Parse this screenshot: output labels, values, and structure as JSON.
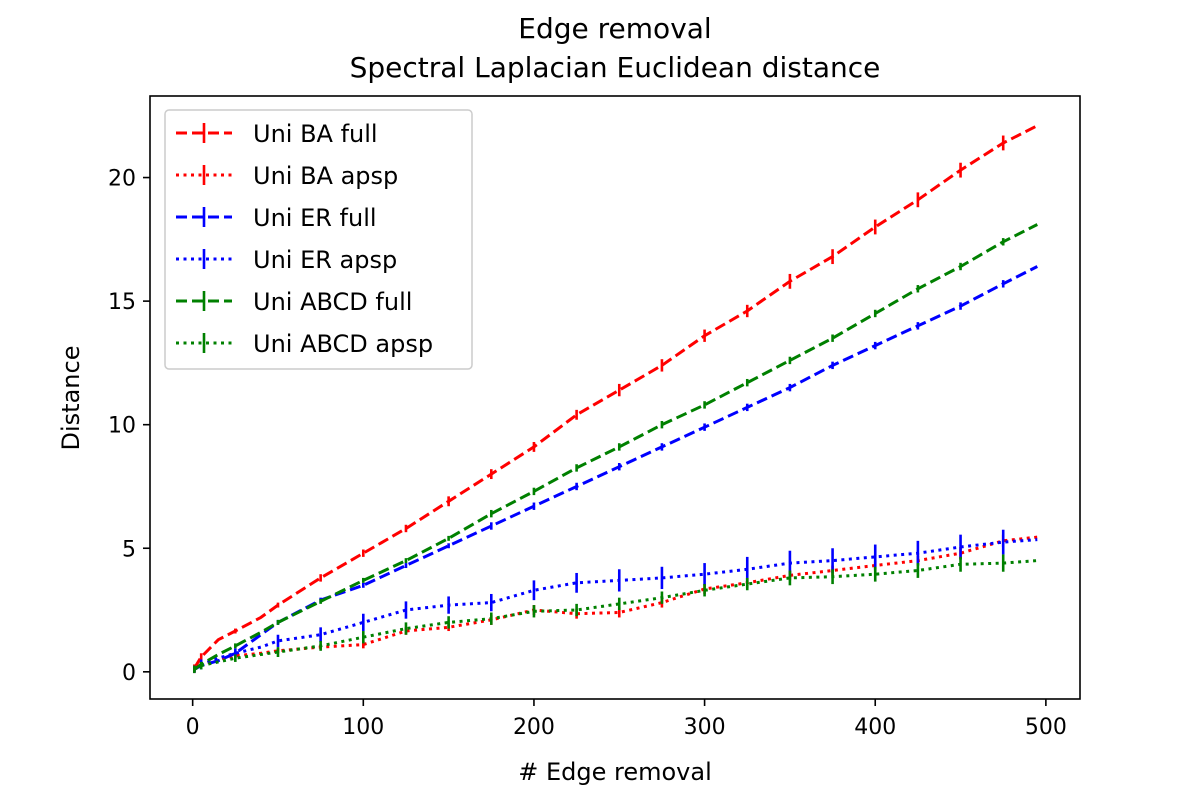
{
  "chart_data": {
    "type": "line",
    "title": "Edge removal",
    "subtitle": "Spectral Laplacian Euclidean distance",
    "xlabel": "#  Edge removal",
    "ylabel": "Distance",
    "xlim": [
      -25,
      520
    ],
    "ylim": [
      -1.1,
      23.3
    ],
    "xticks": [
      0,
      100,
      200,
      300,
      400,
      500
    ],
    "yticks": [
      0,
      5,
      10,
      15,
      20
    ],
    "xtick_labels": [
      "0",
      "100",
      "200",
      "300",
      "400",
      "500"
    ],
    "ytick_labels": [
      "0",
      "5",
      "10",
      "15",
      "20"
    ],
    "legend_position": "top-left",
    "grid": false,
    "x": [
      1,
      5,
      15,
      25,
      40,
      50,
      75,
      100,
      125,
      150,
      175,
      200,
      225,
      250,
      275,
      300,
      325,
      350,
      375,
      400,
      425,
      450,
      475,
      495
    ],
    "errorbar_x": [
      1,
      5,
      25,
      50,
      75,
      100,
      125,
      150,
      175,
      200,
      225,
      250,
      275,
      300,
      325,
      350,
      375,
      400,
      425,
      450,
      475
    ],
    "series": [
      {
        "name": "Uni BA full",
        "color": "#ff0000",
        "style": "dashed",
        "values": [
          0.15,
          0.6,
          1.3,
          1.65,
          2.2,
          2.7,
          3.8,
          4.8,
          5.8,
          6.9,
          8.0,
          9.1,
          10.4,
          11.4,
          12.4,
          13.6,
          14.6,
          15.8,
          16.8,
          18.0,
          19.1,
          20.3,
          21.4,
          22.1
        ],
        "errors": [
          0.15,
          0.15,
          0.1,
          0.1,
          0.15,
          0.15,
          0.15,
          0.2,
          0.2,
          0.2,
          0.2,
          0.25,
          0.25,
          0.25,
          0.25,
          0.3,
          0.3,
          0.3,
          0.3,
          0.3,
          0.3
        ]
      },
      {
        "name": "Uni BA apsp",
        "color": "#ff0000",
        "style": "dotted",
        "values": [
          0.1,
          0.3,
          0.5,
          0.65,
          0.75,
          0.85,
          1.0,
          1.1,
          1.65,
          1.8,
          2.1,
          2.5,
          2.35,
          2.4,
          2.8,
          3.35,
          3.6,
          3.9,
          4.1,
          4.3,
          4.5,
          4.8,
          5.3,
          5.45
        ],
        "errors": [
          0.15,
          0.15,
          0.1,
          0.1,
          0.1,
          0.15,
          0.15,
          0.15,
          0.2,
          0.2,
          0.2,
          0.2,
          0.2,
          0.2,
          0.2,
          0.2,
          0.2,
          0.2,
          0.2,
          0.25,
          0.25
        ]
      },
      {
        "name": "Uni ER full",
        "color": "#0000ff",
        "style": "dashed",
        "values": [
          0.1,
          0.25,
          0.45,
          0.75,
          1.5,
          2.0,
          2.9,
          3.5,
          4.3,
          5.1,
          5.9,
          6.7,
          7.5,
          8.3,
          9.1,
          9.9,
          10.7,
          11.5,
          12.4,
          13.2,
          14.0,
          14.8,
          15.7,
          16.4
        ],
        "errors": [
          0.1,
          0.1,
          0.1,
          0.1,
          0.1,
          0.1,
          0.1,
          0.1,
          0.15,
          0.15,
          0.15,
          0.15,
          0.15,
          0.15,
          0.15,
          0.15,
          0.15,
          0.15,
          0.15,
          0.15,
          0.15
        ]
      },
      {
        "name": "Uni ER apsp",
        "color": "#0000ff",
        "style": "dotted",
        "values": [
          0.1,
          0.3,
          0.55,
          0.75,
          1.0,
          1.25,
          1.5,
          2.0,
          2.5,
          2.7,
          2.8,
          3.3,
          3.6,
          3.7,
          3.8,
          3.95,
          4.15,
          4.4,
          4.5,
          4.65,
          4.8,
          5.05,
          5.25,
          5.35
        ],
        "errors": [
          0.15,
          0.2,
          0.2,
          0.25,
          0.3,
          0.35,
          0.35,
          0.35,
          0.35,
          0.4,
          0.4,
          0.45,
          0.45,
          0.45,
          0.5,
          0.5,
          0.5,
          0.5,
          0.5,
          0.5,
          0.5
        ]
      },
      {
        "name": "Uni ABCD full",
        "color": "#008000",
        "style": "dashed",
        "values": [
          0.1,
          0.3,
          0.7,
          1.05,
          1.6,
          2.0,
          2.85,
          3.7,
          4.5,
          5.4,
          6.4,
          7.3,
          8.25,
          9.1,
          10.0,
          10.8,
          11.7,
          12.6,
          13.5,
          14.5,
          15.5,
          16.4,
          17.4,
          18.1
        ],
        "errors": [
          0.1,
          0.1,
          0.1,
          0.1,
          0.1,
          0.1,
          0.1,
          0.1,
          0.15,
          0.15,
          0.15,
          0.15,
          0.15,
          0.15,
          0.15,
          0.15,
          0.15,
          0.15,
          0.15,
          0.15,
          0.15
        ]
      },
      {
        "name": "Uni ABCD apsp",
        "color": "#008000",
        "style": "dotted",
        "values": [
          0.1,
          0.25,
          0.4,
          0.55,
          0.7,
          0.8,
          1.05,
          1.4,
          1.75,
          2.0,
          2.15,
          2.45,
          2.5,
          2.75,
          3.0,
          3.3,
          3.55,
          3.8,
          3.85,
          3.95,
          4.1,
          4.35,
          4.4,
          4.5
        ],
        "errors": [
          0.15,
          0.15,
          0.15,
          0.2,
          0.2,
          0.25,
          0.25,
          0.25,
          0.25,
          0.25,
          0.25,
          0.25,
          0.25,
          0.25,
          0.25,
          0.3,
          0.3,
          0.3,
          0.3,
          0.3,
          0.35
        ]
      }
    ]
  }
}
